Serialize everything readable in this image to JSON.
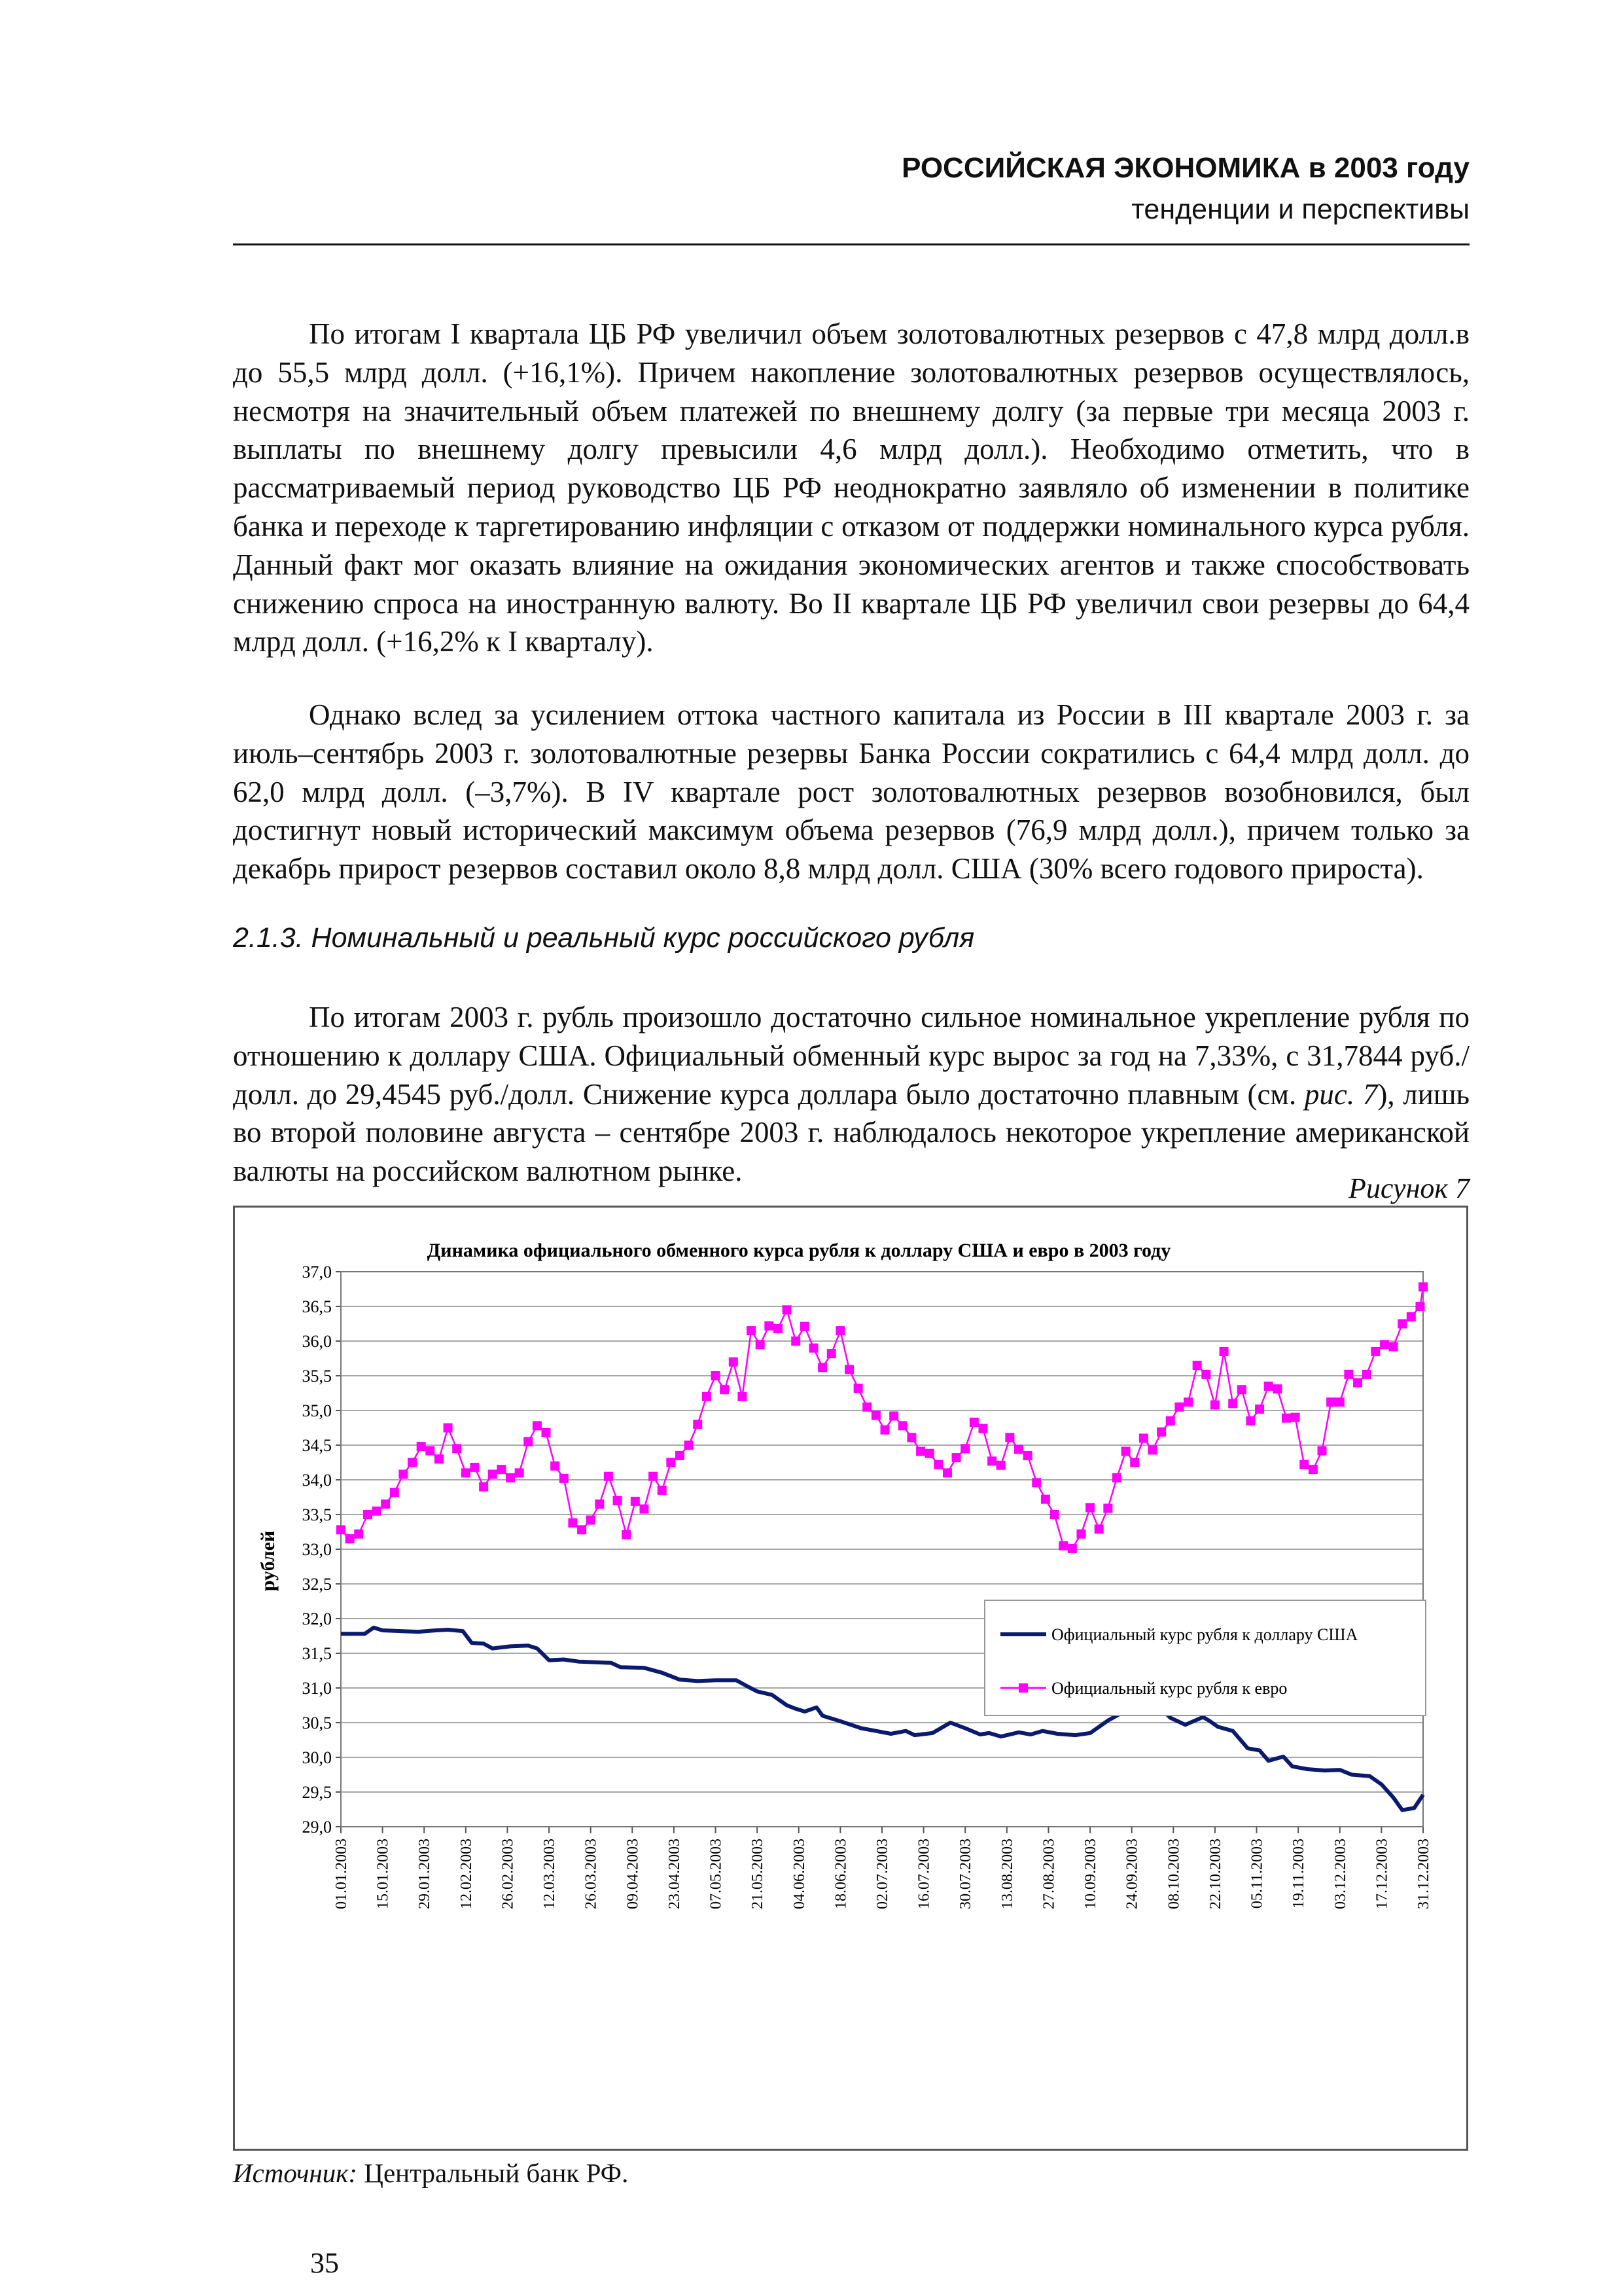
{
  "header": {
    "title": "РОССИЙСКАЯ ЭКОНОМИКА в 2003 году",
    "subtitle": "тенденции и перспективы"
  },
  "paragraphs": {
    "p1": "По итогам I квартала ЦБ РФ увеличил объем золотовалютных резервов с 47,8 млрд долл.в до 55,5 млрд долл. (+16,1%). Причем накопление золотовалютных резервов осуществлялось, несмотря на значительный объем платежей по внешнему долгу (за первые три месяца 2003 г. выплаты по внешнему долгу превысили 4,6 млрд долл.). Необходимо отметить, что в рассматриваемый период руководство ЦБ РФ неоднократно заявляло об изменении в политике банка и переходе к таргетированию инфляции с отказом от поддержки номинального курса рубля. Данный факт мог оказать влияние на ожидания экономических агентов и также способствовать снижению спроса на иностранную валюту. Во II квартале ЦБ РФ увеличил свои резервы до 64,4 млрд долл. (+16,2% к I кварталу).",
    "p2": "Однако вслед за усилением оттока частного капитала из России в III квартале 2003 г. за июль–сентябрь 2003 г. золотовалютные резервы Банка России сократились с 64,4 млрд долл. до 62,0 млрд долл. (–3,7%). В IV квартале рост золотовалютных резервов возобновился, был достигнут новый исторический максимум объема резервов (76,9 млрд долл.), причем только за декабрь прирост резервов составил около 8,8 млрд долл. США (30% всего годового прироста).",
    "p3_before": "По итогам 2003 г. рубль произошло достаточно сильное номинальное укрепление рубля по отношению к доллару США. Официальный обменный курс вырос за год на 7,33%, с 31,7844 руб./долл. до 29,4545 руб./долл. Снижение курса доллара было достаточно плавным (см. ",
    "p3_ref": "рис. 7",
    "p3_after": "), лишь во второй половине августа – сентябре 2003 г. наблюдалось некоторое укрепление американской валюты на российском валютном рынке."
  },
  "section_title": "2.1.3. Номинальный и реальный курс российского рубля",
  "figure_label": "Рисунок 7",
  "source": {
    "label": "Источник:",
    "text": " Центральный банк РФ."
  },
  "page_number": "35",
  "chart_data": {
    "type": "line",
    "title": "Динамика официального обменного курса рубля к доллару США и евро в 2003 году",
    "ylabel": "рублей",
    "xlabel": "",
    "ylim": [
      29.0,
      37.0
    ],
    "yticks": [
      "29,0",
      "29,5",
      "30,0",
      "30,5",
      "31,0",
      "31,5",
      "32,0",
      "32,5",
      "33,0",
      "33,5",
      "34,0",
      "34,5",
      "35,0",
      "35,5",
      "36,0",
      "36,5",
      "37,0"
    ],
    "xticks": [
      "01.01.2003",
      "15.01.2003",
      "29.01.2003",
      "12.02.2003",
      "26.02.2003",
      "12.03.2003",
      "26.03.2003",
      "09.04.2003",
      "23.04.2003",
      "07.05.2003",
      "21.05.2003",
      "04.06.2003",
      "18.06.2003",
      "02.07.2003",
      "16.07.2003",
      "30.07.2003",
      "13.08.2003",
      "27.08.2003",
      "10.09.2003",
      "24.09.2003",
      "08.10.2003",
      "22.10.2003",
      "05.11.2003",
      "19.11.2003",
      "03.12.2003",
      "17.12.2003",
      "31.12.2003"
    ],
    "grid": true,
    "legend_position": "right",
    "x_unit": "days since 01.01.2003",
    "series": [
      {
        "name": "Официальный курс рубля к доллару США",
        "color": "#0a1a6e",
        "marker": "none",
        "points": [
          [
            0,
            31.78
          ],
          [
            8,
            31.78
          ],
          [
            11,
            31.87
          ],
          [
            14,
            31.83
          ],
          [
            20,
            31.82
          ],
          [
            26,
            31.81
          ],
          [
            32,
            31.83
          ],
          [
            36,
            31.84
          ],
          [
            41,
            31.82
          ],
          [
            44,
            31.65
          ],
          [
            48,
            31.64
          ],
          [
            51,
            31.57
          ],
          [
            57,
            31.6
          ],
          [
            63,
            31.61
          ],
          [
            66,
            31.57
          ],
          [
            70,
            31.4
          ],
          [
            75,
            31.41
          ],
          [
            80,
            31.38
          ],
          [
            91,
            31.36
          ],
          [
            94,
            31.3
          ],
          [
            102,
            31.29
          ],
          [
            108,
            31.22
          ],
          [
            114,
            31.12
          ],
          [
            120,
            31.1
          ],
          [
            126,
            31.11
          ],
          [
            133,
            31.11
          ],
          [
            136,
            31.04
          ],
          [
            140,
            30.95
          ],
          [
            145,
            30.9
          ],
          [
            150,
            30.75
          ],
          [
            153,
            30.7
          ],
          [
            156,
            30.66
          ],
          [
            160,
            30.72
          ],
          [
            162,
            30.6
          ],
          [
            168,
            30.52
          ],
          [
            175,
            30.42
          ],
          [
            180,
            30.38
          ],
          [
            185,
            30.34
          ],
          [
            190,
            30.38
          ],
          [
            193,
            30.32
          ],
          [
            199,
            30.35
          ],
          [
            205,
            30.5
          ],
          [
            210,
            30.42
          ],
          [
            215,
            30.33
          ],
          [
            218,
            30.35
          ],
          [
            222,
            30.3
          ],
          [
            228,
            30.36
          ],
          [
            232,
            30.33
          ],
          [
            236,
            30.38
          ],
          [
            241,
            30.34
          ],
          [
            247,
            30.32
          ],
          [
            252,
            30.35
          ],
          [
            258,
            30.53
          ],
          [
            263,
            30.65
          ],
          [
            266,
            30.68
          ],
          [
            270,
            30.65
          ],
          [
            276,
            30.7
          ],
          [
            279,
            30.57
          ],
          [
            284,
            30.47
          ],
          [
            290,
            30.58
          ],
          [
            292,
            30.53
          ],
          [
            295,
            30.44
          ],
          [
            300,
            30.38
          ],
          [
            305,
            30.13
          ],
          [
            309,
            30.1
          ],
          [
            312,
            29.95
          ],
          [
            317,
            30.01
          ],
          [
            320,
            29.87
          ],
          [
            325,
            29.83
          ],
          [
            331,
            29.81
          ],
          [
            336,
            29.82
          ],
          [
            340,
            29.75
          ],
          [
            346,
            29.73
          ],
          [
            350,
            29.61
          ],
          [
            354,
            29.42
          ],
          [
            357,
            29.24
          ],
          [
            361,
            29.27
          ],
          [
            364,
            29.46
          ]
        ]
      },
      {
        "name": "Официальный курс рубля к евро",
        "color": "#ff00ff",
        "marker": "square",
        "points": [
          [
            0,
            33.28
          ],
          [
            3,
            33.15
          ],
          [
            6,
            33.22
          ],
          [
            9,
            33.5
          ],
          [
            12,
            33.55
          ],
          [
            15,
            33.65
          ],
          [
            18,
            33.82
          ],
          [
            21,
            34.08
          ],
          [
            24,
            34.25
          ],
          [
            27,
            34.48
          ],
          [
            30,
            34.42
          ],
          [
            33,
            34.3
          ],
          [
            36,
            34.75
          ],
          [
            39,
            34.45
          ],
          [
            42,
            34.1
          ],
          [
            45,
            34.18
          ],
          [
            48,
            33.9
          ],
          [
            51,
            34.08
          ],
          [
            54,
            34.15
          ],
          [
            57,
            34.03
          ],
          [
            60,
            34.1
          ],
          [
            63,
            34.55
          ],
          [
            66,
            34.78
          ],
          [
            69,
            34.68
          ],
          [
            72,
            34.2
          ],
          [
            75,
            34.02
          ],
          [
            78,
            33.38
          ],
          [
            81,
            33.28
          ],
          [
            84,
            33.42
          ],
          [
            87,
            33.65
          ],
          [
            90,
            34.05
          ],
          [
            93,
            33.7
          ],
          [
            96,
            33.21
          ],
          [
            99,
            33.69
          ],
          [
            102,
            33.58
          ],
          [
            105,
            34.05
          ],
          [
            108,
            33.85
          ],
          [
            111,
            34.25
          ],
          [
            114,
            34.35
          ],
          [
            117,
            34.5
          ],
          [
            120,
            34.8
          ],
          [
            123,
            35.2
          ],
          [
            126,
            35.5
          ],
          [
            129,
            35.3
          ],
          [
            132,
            35.7
          ],
          [
            135,
            35.2
          ],
          [
            138,
            36.15
          ],
          [
            141,
            35.95
          ],
          [
            144,
            36.22
          ],
          [
            147,
            36.18
          ],
          [
            150,
            36.45
          ],
          [
            153,
            36.0
          ],
          [
            156,
            36.21
          ],
          [
            159,
            35.9
          ],
          [
            162,
            35.62
          ],
          [
            165,
            35.82
          ],
          [
            168,
            36.15
          ],
          [
            171,
            35.59
          ],
          [
            174,
            35.32
          ],
          [
            177,
            35.05
          ],
          [
            180,
            34.93
          ],
          [
            183,
            34.72
          ],
          [
            186,
            34.92
          ],
          [
            189,
            34.78
          ],
          [
            192,
            34.61
          ],
          [
            195,
            34.41
          ],
          [
            198,
            34.38
          ],
          [
            201,
            34.22
          ],
          [
            204,
            34.1
          ],
          [
            207,
            34.32
          ],
          [
            210,
            34.45
          ],
          [
            213,
            34.83
          ],
          [
            216,
            34.74
          ],
          [
            219,
            34.27
          ],
          [
            222,
            34.21
          ],
          [
            225,
            34.61
          ],
          [
            228,
            34.44
          ],
          [
            231,
            34.35
          ],
          [
            234,
            33.96
          ],
          [
            237,
            33.72
          ],
          [
            240,
            33.5
          ],
          [
            243,
            33.05
          ],
          [
            246,
            33.01
          ],
          [
            249,
            33.22
          ],
          [
            252,
            33.6
          ],
          [
            255,
            33.29
          ],
          [
            258,
            33.59
          ],
          [
            261,
            34.03
          ],
          [
            264,
            34.41
          ],
          [
            267,
            34.25
          ],
          [
            270,
            34.6
          ],
          [
            273,
            34.43
          ],
          [
            276,
            34.69
          ],
          [
            279,
            34.85
          ],
          [
            282,
            35.05
          ],
          [
            285,
            35.12
          ],
          [
            288,
            35.65
          ],
          [
            291,
            35.52
          ],
          [
            294,
            35.08
          ],
          [
            297,
            35.85
          ],
          [
            300,
            35.1
          ],
          [
            303,
            35.3
          ],
          [
            306,
            34.85
          ],
          [
            309,
            35.02
          ],
          [
            312,
            35.35
          ],
          [
            315,
            35.31
          ],
          [
            318,
            34.89
          ],
          [
            321,
            34.9
          ],
          [
            324,
            34.22
          ],
          [
            327,
            34.15
          ],
          [
            330,
            34.42
          ],
          [
            333,
            35.12
          ],
          [
            336,
            35.12
          ],
          [
            339,
            35.52
          ],
          [
            342,
            35.4
          ],
          [
            345,
            35.52
          ],
          [
            348,
            35.85
          ],
          [
            351,
            35.95
          ],
          [
            354,
            35.92
          ],
          [
            357,
            36.25
          ],
          [
            360,
            36.35
          ],
          [
            363,
            36.5
          ],
          [
            364,
            36.78
          ]
        ]
      }
    ]
  }
}
